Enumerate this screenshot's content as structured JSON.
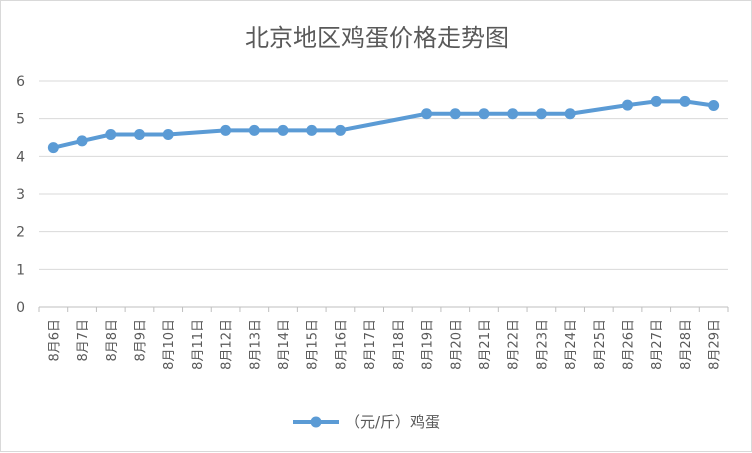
{
  "chart_data": {
    "type": "line",
    "title": "北京地区鸡蛋价格走势图",
    "xlabel": "",
    "ylabel": "",
    "ylim": [
      0,
      6
    ],
    "yticks": [
      0,
      1,
      2,
      3,
      4,
      5,
      6
    ],
    "grid": true,
    "legend": "bottom",
    "categories": [
      "8月6日",
      "8月7日",
      "8月8日",
      "8月9日",
      "8月10日",
      "8月11日",
      "8月12日",
      "8月13日",
      "8月14日",
      "8月15日",
      "8月16日",
      "8月17日",
      "8月18日",
      "8月19日",
      "8月20日",
      "8月21日",
      "8月22日",
      "8月23日",
      "8月24日",
      "8月25日",
      "8月26日",
      "8月27日",
      "8月28日",
      "8月29日"
    ],
    "series": [
      {
        "name": "（元/斤）鸡蛋",
        "color": "#5b9bd5",
        "values": [
          4.23,
          4.41,
          4.58,
          4.58,
          4.58,
          null,
          4.69,
          4.69,
          4.69,
          4.69,
          4.69,
          null,
          null,
          5.13,
          5.13,
          5.13,
          5.13,
          5.13,
          5.13,
          null,
          5.36,
          5.46,
          5.46,
          5.35
        ]
      }
    ]
  }
}
